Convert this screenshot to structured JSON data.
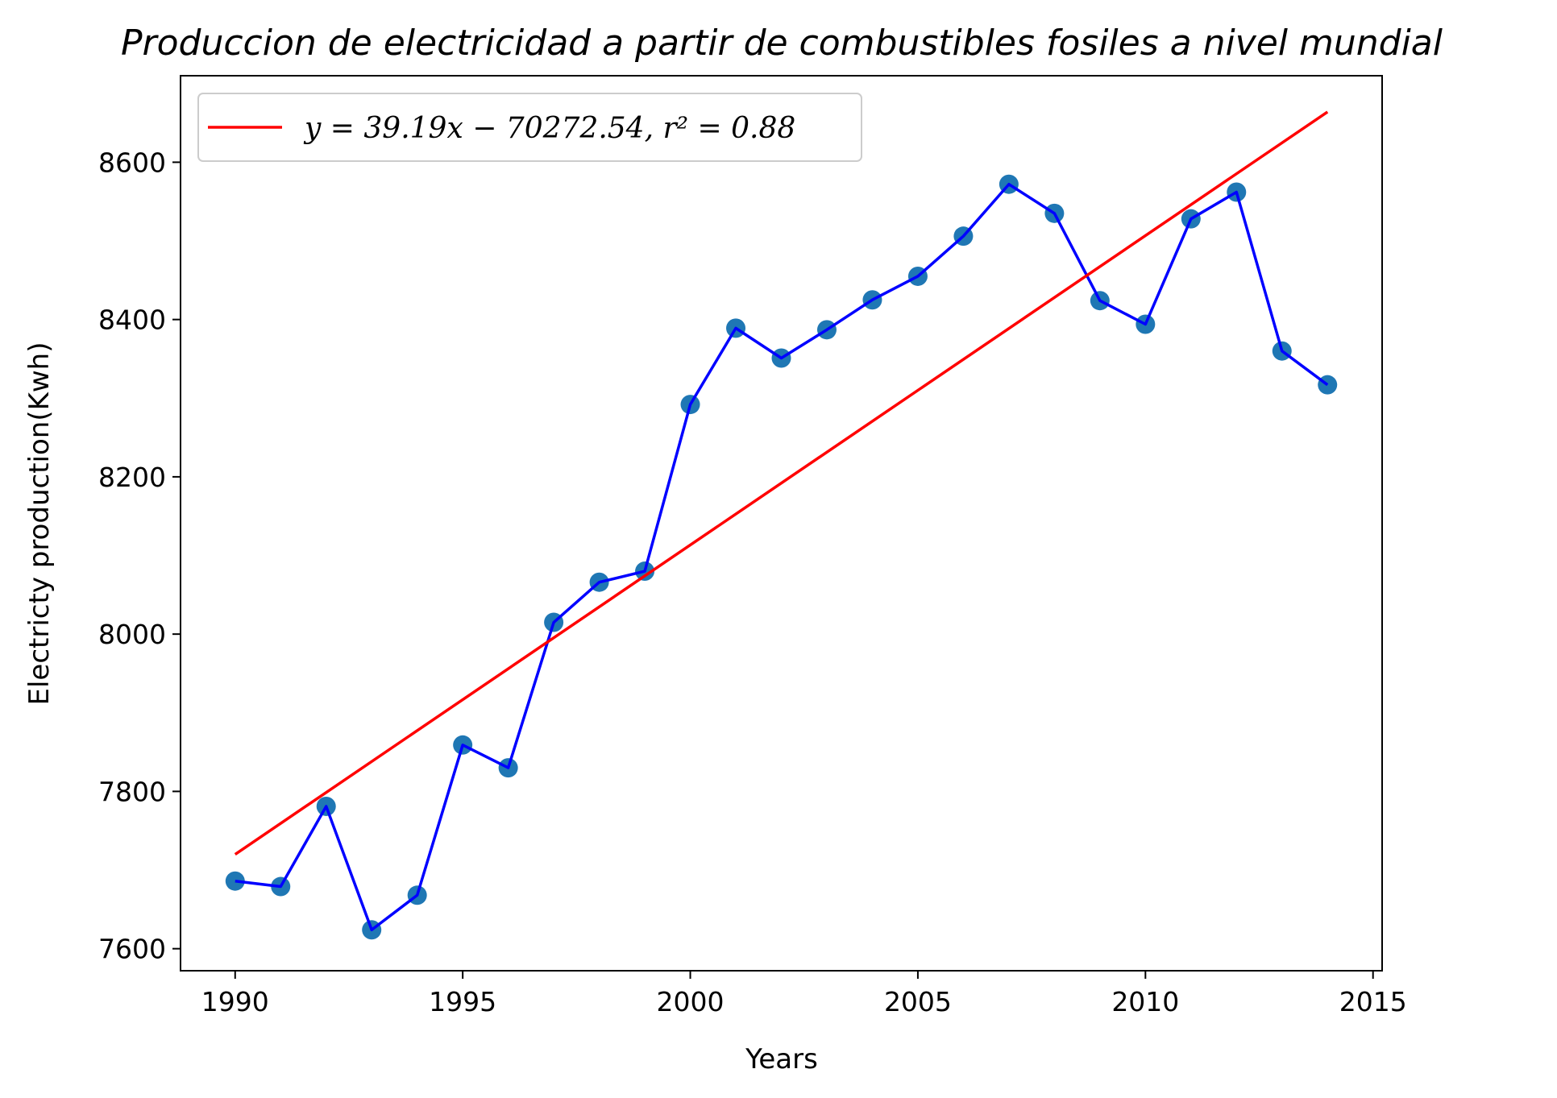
{
  "chart_data": {
    "type": "scatter",
    "title": "Produccion de electricidad a partir de combustibles fosiles a nivel mundial",
    "xlabel": "Years",
    "ylabel": "Electricty production(Kwh)",
    "xlim": [
      1988.8,
      2015.2
    ],
    "ylim": [
      7572,
      8710
    ],
    "xticks": [
      1990,
      1995,
      2000,
      2005,
      2010,
      2015
    ],
    "yticks": [
      7600,
      7800,
      8000,
      8200,
      8400,
      8600
    ],
    "grid": false,
    "legend_position": "top-left",
    "legend": [
      {
        "label": "y = 39.19x − 70272.54, r² = 0.88",
        "color": "#ff0000"
      }
    ],
    "series": [
      {
        "type": "scatter+line",
        "marker_color": "#1f77b4",
        "line_color": "#0000ff",
        "x": [
          1990,
          1991,
          1992,
          1993,
          1994,
          1995,
          1996,
          1997,
          1998,
          1999,
          2000,
          2001,
          2002,
          2003,
          2004,
          2005,
          2006,
          2007,
          2008,
          2009,
          2010,
          2011,
          2012,
          2013,
          2014
        ],
        "y": [
          7686,
          7679,
          7781,
          7624,
          7668,
          7859,
          7830,
          8015,
          8066,
          8080,
          8292,
          8389,
          8351,
          8387,
          8425,
          8455,
          8506,
          8572,
          8535,
          8424,
          8394,
          8528,
          8562,
          8360,
          8317
        ]
      },
      {
        "type": "line",
        "color": "#ff0000",
        "x": [
          1990,
          2014
        ],
        "y": [
          7720,
          8664
        ]
      }
    ]
  }
}
